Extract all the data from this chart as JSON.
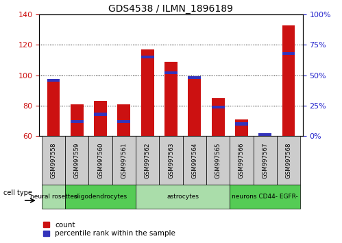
{
  "title": "GDS4538 / ILMN_1896189",
  "samples": [
    "GSM997558",
    "GSM997559",
    "GSM997560",
    "GSM997561",
    "GSM997562",
    "GSM997563",
    "GSM997564",
    "GSM997565",
    "GSM997566",
    "GSM997567",
    "GSM997568"
  ],
  "count_values": [
    97,
    81,
    83,
    81,
    117,
    109,
    99,
    85,
    71,
    61,
    133
  ],
  "percentile_values": [
    46,
    12,
    18,
    12,
    65,
    52,
    48,
    24,
    10,
    1,
    68
  ],
  "ylim_left": [
    60,
    140
  ],
  "ylim_right": [
    0,
    100
  ],
  "yticks_left": [
    60,
    80,
    100,
    120,
    140
  ],
  "yticks_right": [
    0,
    25,
    50,
    75,
    100
  ],
  "bar_color_red": "#CC1111",
  "bar_color_blue": "#3333BB",
  "cell_types": [
    {
      "label": "neural rosettes",
      "start": 0,
      "end": 1,
      "color": "#aaddaa"
    },
    {
      "label": "oligodendrocytes",
      "start": 1,
      "end": 4,
      "color": "#55cc55"
    },
    {
      "label": "astrocytes",
      "start": 4,
      "end": 8,
      "color": "#aaddaa"
    },
    {
      "label": "neurons CD44- EGFR-",
      "start": 8,
      "end": 11,
      "color": "#55cc55"
    }
  ],
  "cell_type_label": "cell type",
  "legend_count": "count",
  "legend_percentile": "percentile rank within the sample",
  "bar_width": 0.55,
  "ylabel_left_color": "#CC1111",
  "ylabel_right_color": "#2222CC",
  "tick_label_bg": "#cccccc",
  "baseline": 60
}
